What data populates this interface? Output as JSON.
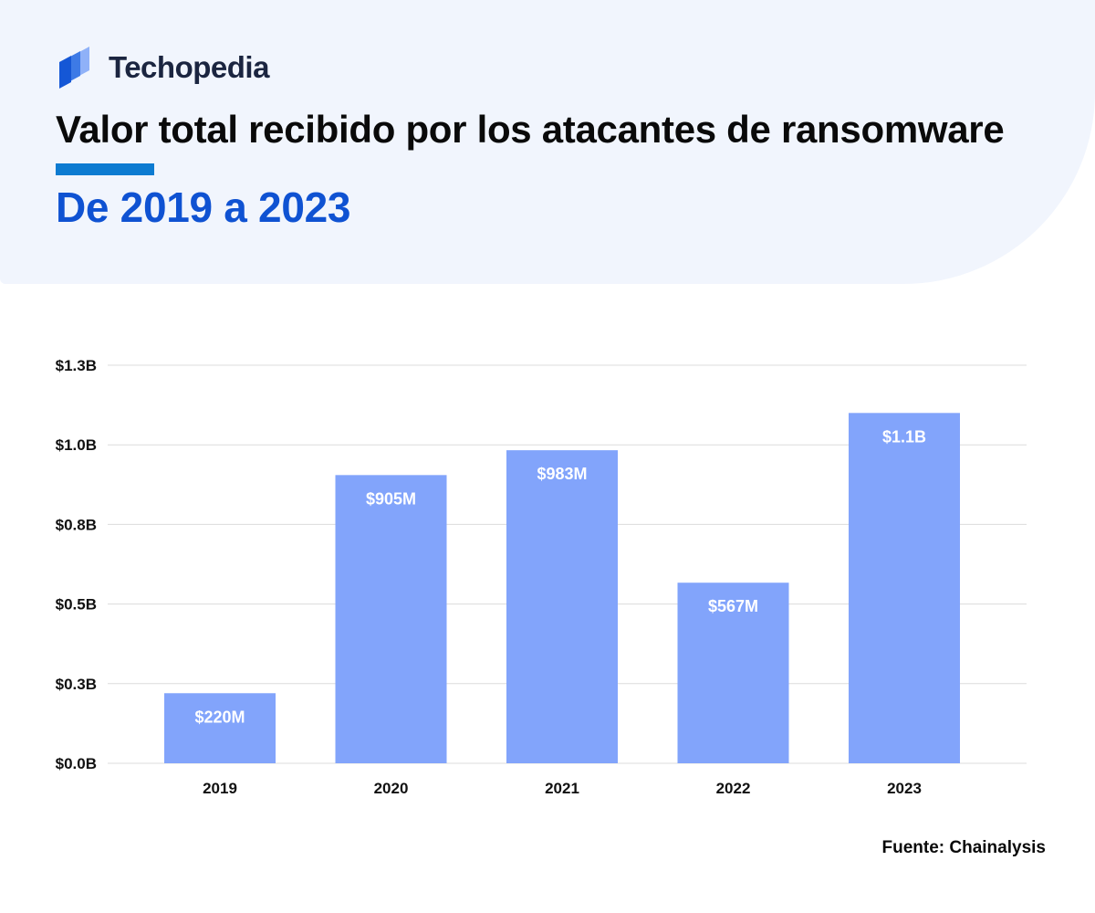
{
  "brand": {
    "name": "Techopedia",
    "logo_icon": "techopedia-stacked-panels-icon"
  },
  "header": {
    "title": "Valor total recibido por los atacantes de ransomware",
    "subtitle": "De 2019 a 2023"
  },
  "source": "Fuente: Chainalysis",
  "colors": {
    "bar": "#82a4fb",
    "grid": "#dcdcdc",
    "title_accent": "#0d7bd1",
    "subtitle": "#0f52d2",
    "header_bg": "#f1f5fd",
    "logo_dark": "#1557d6",
    "logo_mid": "#3d7ae6",
    "logo_light": "#8fb1f8"
  },
  "chart_data": {
    "type": "bar",
    "title": "Valor total recibido por los atacantes de ransomware",
    "subtitle": "De 2019 a 2023",
    "xlabel": "",
    "ylabel": "",
    "categories": [
      "2019",
      "2020",
      "2021",
      "2022",
      "2023"
    ],
    "values": [
      0.22,
      0.905,
      0.983,
      0.567,
      1.1
    ],
    "unit": "billion USD",
    "data_labels": [
      "$220M",
      "$905M",
      "$983M",
      "$567M",
      "$1.1B"
    ],
    "ylim": [
      0,
      1.25
    ],
    "yticks": [
      0,
      0.25,
      0.5,
      0.75,
      1.0,
      1.25
    ],
    "ytick_labels": [
      "$0.0B",
      "$0.3B",
      "$0.5B",
      "$0.8B",
      "$1.0B",
      "$1.3B"
    ],
    "grid": true,
    "legend": "none"
  }
}
